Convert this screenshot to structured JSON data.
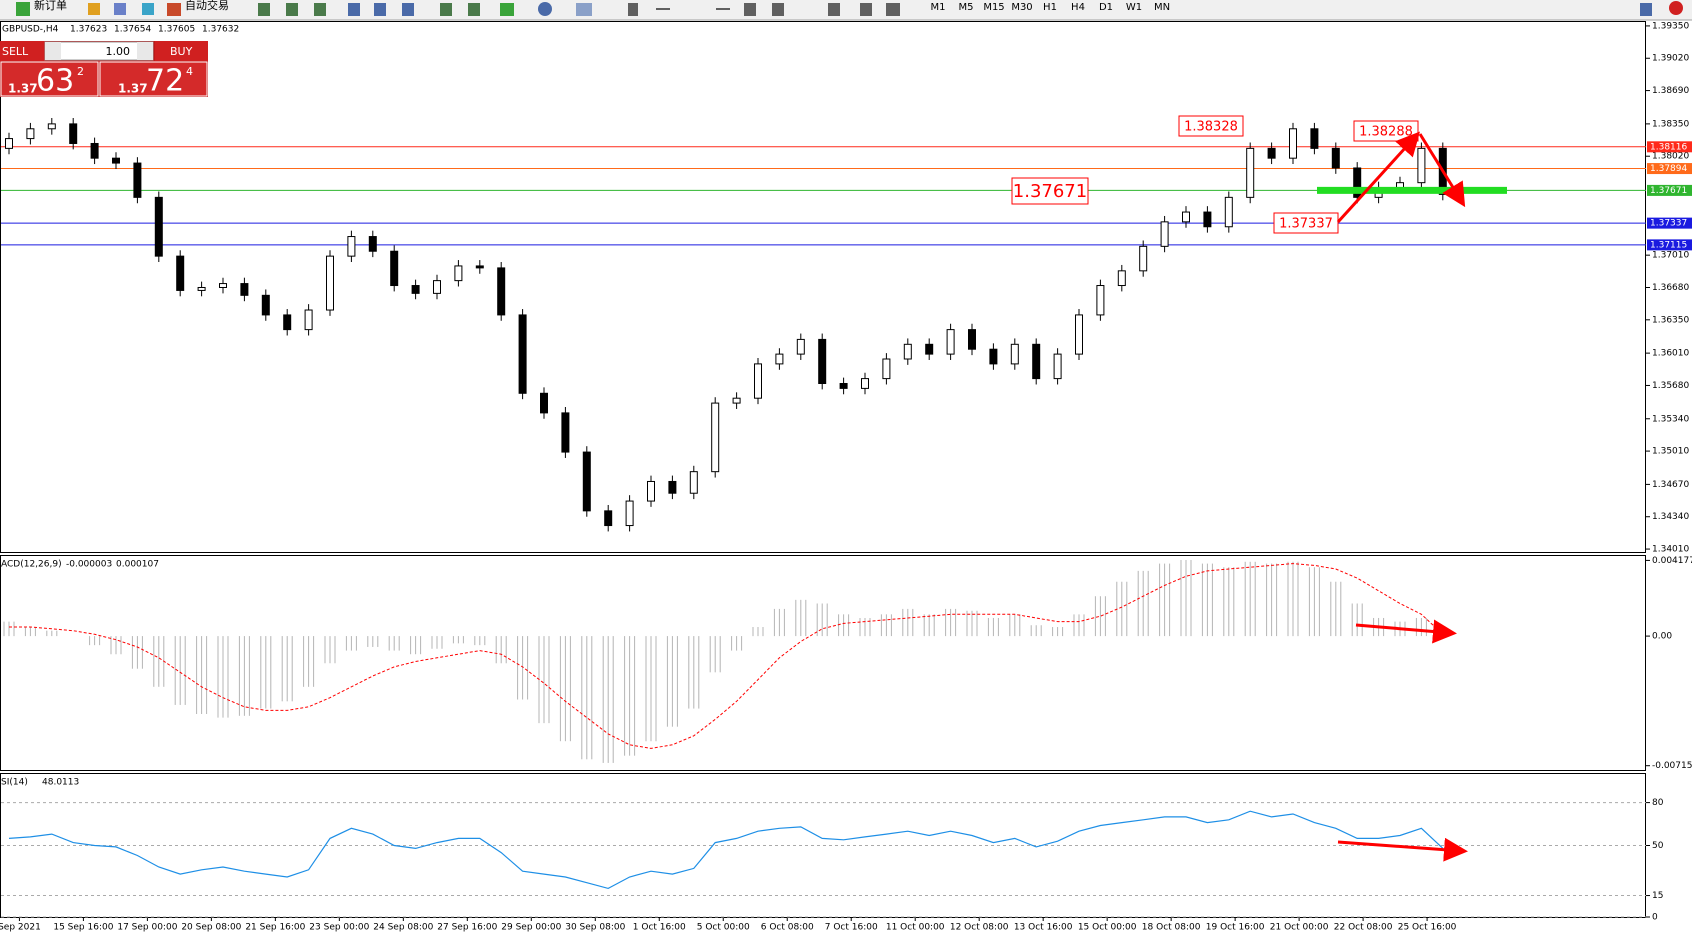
{
  "toolbar": {
    "buttons": [
      "新订单",
      "自动交易"
    ],
    "timeframes": [
      "M1",
      "M5",
      "M15",
      "M30",
      "H1",
      "H4",
      "D1",
      "W1",
      "MN"
    ]
  },
  "trade_panel": {
    "sell": "SELL",
    "buy": "BUY",
    "lot": "1.00",
    "sell_price": {
      "prefix": "1.37",
      "big": "63",
      "small": "2"
    },
    "buy_price": {
      "prefix": "1.37",
      "big": "72",
      "small": "4"
    }
  },
  "chart_data": [
    {
      "type": "candlestick",
      "title": "GBPUSD-,H4",
      "quote": [
        1.37623,
        1.37654,
        1.37605,
        1.37632
      ],
      "up_color": "#ffffff",
      "down_color": "#000000",
      "open": [
        1.381,
        1.382,
        1.383,
        1.3835,
        1.3815,
        1.38,
        1.3795,
        1.376,
        1.37,
        1.3665,
        1.3668,
        1.3672,
        1.366,
        1.364,
        1.3625,
        1.3645,
        1.37,
        1.372,
        1.3705,
        1.367,
        1.3662,
        1.3675,
        1.369,
        1.3688,
        1.364,
        1.356,
        1.354,
        1.35,
        1.344,
        1.3425,
        1.345,
        1.347,
        1.3458,
        1.348,
        1.355,
        1.3555,
        1.359,
        1.36,
        1.3615,
        1.357,
        1.3565,
        1.3575,
        1.3595,
        1.361,
        1.36,
        1.3625,
        1.3605,
        1.359,
        1.361,
        1.3575,
        1.36,
        1.364,
        1.367,
        1.3685,
        1.371,
        1.3735,
        1.3745,
        1.373,
        1.376,
        1.381,
        1.38,
        1.383,
        1.381,
        1.379,
        1.376,
        1.377,
        1.3775,
        1.381
      ],
      "high": [
        1.3826,
        1.3836,
        1.3841,
        1.3841,
        1.3821,
        1.3806,
        1.3801,
        1.3766,
        1.3706,
        1.3674,
        1.3678,
        1.3678,
        1.3666,
        1.3646,
        1.3651,
        1.3706,
        1.3726,
        1.3726,
        1.3711,
        1.3676,
        1.3681,
        1.3696,
        1.3696,
        1.3694,
        1.3646,
        1.3566,
        1.3546,
        1.3506,
        1.3446,
        1.3456,
        1.3476,
        1.3476,
        1.3486,
        1.3556,
        1.3561,
        1.3596,
        1.3606,
        1.3621,
        1.3621,
        1.3576,
        1.3581,
        1.3601,
        1.3616,
        1.3616,
        1.3631,
        1.3631,
        1.3611,
        1.3616,
        1.3616,
        1.3606,
        1.3646,
        1.3676,
        1.3691,
        1.3716,
        1.3741,
        1.3751,
        1.3751,
        1.3766,
        1.3816,
        1.3816,
        1.3836,
        1.3836,
        1.3816,
        1.3796,
        1.3776,
        1.3781,
        1.3816,
        1.3816
      ],
      "low": [
        1.3804,
        1.3814,
        1.3824,
        1.3809,
        1.3794,
        1.3789,
        1.3754,
        1.3694,
        1.3659,
        1.3659,
        1.3662,
        1.3654,
        1.3634,
        1.3619,
        1.3619,
        1.3639,
        1.3694,
        1.3699,
        1.3664,
        1.3656,
        1.3656,
        1.3669,
        1.3682,
        1.3634,
        1.3554,
        1.3534,
        1.3494,
        1.3434,
        1.3419,
        1.3419,
        1.3444,
        1.3452,
        1.3452,
        1.3474,
        1.3544,
        1.3549,
        1.3584,
        1.3594,
        1.3564,
        1.3559,
        1.3559,
        1.3569,
        1.3589,
        1.3594,
        1.3594,
        1.3599,
        1.3584,
        1.3584,
        1.3569,
        1.3569,
        1.3594,
        1.3634,
        1.3664,
        1.3679,
        1.3704,
        1.3729,
        1.3724,
        1.3724,
        1.3754,
        1.3794,
        1.3794,
        1.3804,
        1.3784,
        1.3754,
        1.3754,
        1.3764,
        1.3769,
        1.3757
      ],
      "close": [
        1.382,
        1.383,
        1.3835,
        1.3815,
        1.38,
        1.3795,
        1.376,
        1.37,
        1.3665,
        1.3668,
        1.3672,
        1.366,
        1.364,
        1.3625,
        1.3645,
        1.37,
        1.372,
        1.3705,
        1.367,
        1.3662,
        1.3675,
        1.369,
        1.3688,
        1.364,
        1.356,
        1.354,
        1.35,
        1.344,
        1.3425,
        1.345,
        1.347,
        1.3458,
        1.348,
        1.355,
        1.3555,
        1.359,
        1.36,
        1.3615,
        1.357,
        1.3565,
        1.3575,
        1.3595,
        1.361,
        1.36,
        1.3625,
        1.3605,
        1.359,
        1.361,
        1.3575,
        1.36,
        1.364,
        1.367,
        1.3685,
        1.371,
        1.3735,
        1.3745,
        1.373,
        1.376,
        1.381,
        1.38,
        1.383,
        1.381,
        1.379,
        1.376,
        1.377,
        1.3775,
        1.381,
        1.3763
      ],
      "ylim": [
        1.3398,
        1.3939
      ],
      "yticks": [
        {
          "value": 1.3935,
          "label": "1.39350"
        },
        {
          "value": 1.3902,
          "label": "1.39020"
        },
        {
          "value": 1.3869,
          "label": "1.38690"
        },
        {
          "value": 1.3835,
          "label": "1.38350"
        },
        {
          "value": 1.3802,
          "label": "1.38020"
        },
        {
          "value": 1.3701,
          "label": "1.37010"
        },
        {
          "value": 1.3668,
          "label": "1.36680"
        },
        {
          "value": 1.3635,
          "label": "1.36350"
        },
        {
          "value": 1.3601,
          "label": "1.36010"
        },
        {
          "value": 1.3568,
          "label": "1.35680"
        },
        {
          "value": 1.3534,
          "label": "1.35340"
        },
        {
          "value": 1.3501,
          "label": "1.35010"
        },
        {
          "value": 1.3467,
          "label": "1.34670"
        },
        {
          "value": 1.3434,
          "label": "1.34340"
        },
        {
          "value": 1.3401,
          "label": "1.34010"
        }
      ],
      "levels": [
        {
          "price": 1.38116,
          "color": "#ff2a1a"
        },
        {
          "price": 1.37894,
          "color": "#ff6a1a"
        },
        {
          "price": 1.37671,
          "color": "#2fb52f"
        },
        {
          "price": 1.37337,
          "color": "#1a1ae0"
        },
        {
          "price": 1.37115,
          "color": "#1a1ae0"
        }
      ],
      "annotations": [
        "1.38328",
        "1.38288",
        "1.37671",
        "1.37337"
      ],
      "time_labels": [
        "Sep 2021",
        "15 Sep 16:00",
        "17 Sep 00:00",
        "20 Sep 08:00",
        "21 Sep 16:00",
        "23 Sep 00:00",
        "24 Sep 08:00",
        "27 Sep 16:00",
        "29 Sep 00:00",
        "30 Sep 08:00",
        "1 Oct 16:00",
        "5 Oct 00:00",
        "6 Oct 08:00",
        "7 Oct 16:00",
        "11 Oct 00:00",
        "12 Oct 08:00",
        "13 Oct 16:00",
        "15 Oct 00:00",
        "18 Oct 08:00",
        "19 Oct 16:00",
        "21 Oct 00:00",
        "22 Oct 08:00",
        "25 Oct 16:00"
      ]
    },
    {
      "type": "macd",
      "title": "ACD(12,26,9)",
      "histogram_color": "#b4b4b4",
      "signal_color": "#ff0000",
      "histogram": [
        0.0008,
        0.0005,
        0.0003,
        0.0,
        -0.0005,
        -0.001,
        -0.0018,
        -0.0028,
        -0.0038,
        -0.0043,
        -0.0045,
        -0.0044,
        -0.004,
        -0.0036,
        -0.0028,
        -0.0015,
        -0.0008,
        -0.0006,
        -0.0008,
        -0.001,
        -0.0007,
        -0.0004,
        -0.0005,
        -0.0015,
        -0.0035,
        -0.0048,
        -0.0058,
        -0.0068,
        -0.007,
        -0.0066,
        -0.0058,
        -0.005,
        -0.004,
        -0.002,
        -0.0008,
        0.0005,
        0.0015,
        0.002,
        0.0018,
        0.0012,
        0.001,
        0.0012,
        0.0015,
        0.0012,
        0.0015,
        0.0014,
        0.001,
        0.0012,
        0.0006,
        0.0005,
        0.0012,
        0.0022,
        0.003,
        0.0036,
        0.004,
        0.0042,
        0.004,
        0.0038,
        0.0041,
        0.004,
        0.0041,
        0.0038,
        0.003,
        0.0018,
        0.001,
        0.0008,
        0.001,
        -3e-06
      ],
      "signal": [
        0.0005,
        0.0005,
        0.0004,
        0.0003,
        0.0001,
        -0.0002,
        -0.0006,
        -0.0012,
        -0.002,
        -0.0028,
        -0.0034,
        -0.0039,
        -0.0041,
        -0.0041,
        -0.0039,
        -0.0034,
        -0.0028,
        -0.0022,
        -0.0017,
        -0.0014,
        -0.0012,
        -0.001,
        -0.0008,
        -0.001,
        -0.0017,
        -0.0026,
        -0.0036,
        -0.0045,
        -0.0054,
        -0.006,
        -0.0062,
        -0.006,
        -0.0055,
        -0.0046,
        -0.0036,
        -0.0024,
        -0.0012,
        -0.0003,
        0.0004,
        0.0007,
        0.0008,
        0.0009,
        0.001,
        0.0011,
        0.0012,
        0.0012,
        0.0012,
        0.0012,
        0.001,
        0.0008,
        0.0008,
        0.0011,
        0.0016,
        0.0022,
        0.0028,
        0.0033,
        0.0036,
        0.0037,
        0.0038,
        0.0039,
        0.004,
        0.0039,
        0.0037,
        0.0032,
        0.0025,
        0.0018,
        0.0012,
        0.000107
      ],
      "ylim": [
        -0.00739,
        0.00442
      ],
      "yticks": [
        0.004177,
        {
          "value": 0,
          "label": "0.00"
        },
        -0.007153
      ]
    },
    {
      "type": "rsi",
      "title": "SI(14)",
      "color": "#1e8fe6",
      "values": [
        55,
        56,
        58,
        52,
        50,
        49,
        43,
        35,
        30,
        33,
        35,
        32,
        30,
        28,
        33,
        55,
        62,
        58,
        50,
        48,
        52,
        55,
        55,
        45,
        32,
        30,
        28,
        24,
        20,
        28,
        32,
        30,
        34,
        52,
        55,
        60,
        62,
        63,
        55,
        54,
        56,
        58,
        60,
        57,
        60,
        57,
        52,
        55,
        49,
        53,
        60,
        64,
        66,
        68,
        70,
        70,
        66,
        68,
        74,
        70,
        72,
        66,
        62,
        55,
        55,
        57,
        62,
        48.0113
      ],
      "ylim": [
        0,
        100
      ],
      "yticks": [
        80,
        50,
        15,
        0
      ],
      "grid": true
    }
  ]
}
